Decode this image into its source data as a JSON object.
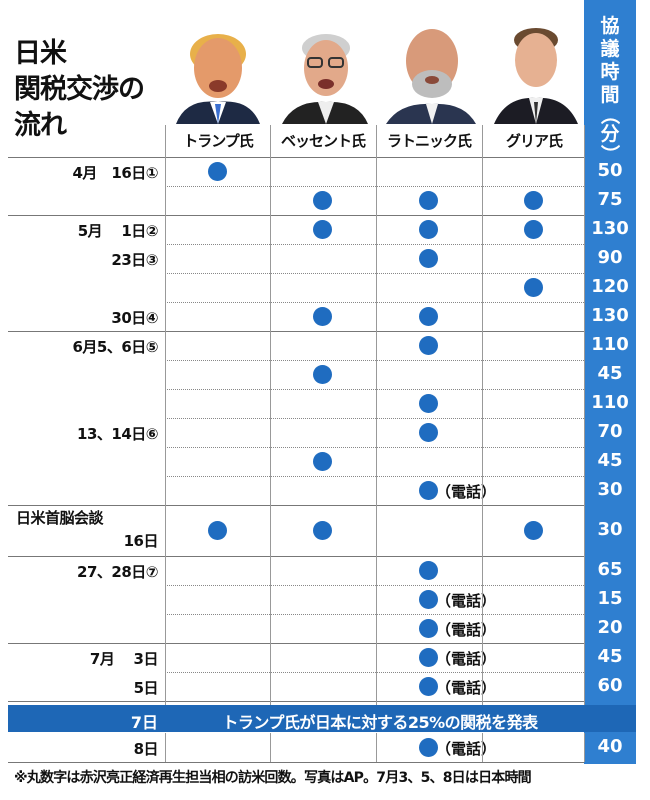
{
  "title_lines": [
    "日米",
    "関税交渉の",
    "流れ"
  ],
  "people": [
    "トランプ氏",
    "ベッセント氏",
    "ラトニック氏",
    "グリア氏"
  ],
  "minutes_header_chars": [
    "協",
    "議",
    "時",
    "間",
    "（",
    "分",
    "）"
  ],
  "phone_label": "（電話）",
  "rows": [
    {
      "date": "4月　16日①",
      "marks": [
        1,
        0,
        0,
        0
      ],
      "minutes": "50"
    },
    {
      "date": "",
      "marks": [
        0,
        1,
        1,
        1
      ],
      "minutes": "75"
    },
    {
      "date": "5月　 1日②",
      "marks": [
        0,
        1,
        1,
        1
      ],
      "minutes": "130"
    },
    {
      "date": "23日③",
      "marks": [
        0,
        0,
        1,
        0
      ],
      "minutes": "90"
    },
    {
      "date": "",
      "marks": [
        0,
        0,
        0,
        1
      ],
      "minutes": "120"
    },
    {
      "date": "30日④",
      "marks": [
        0,
        1,
        1,
        0
      ],
      "minutes": "130"
    },
    {
      "date": "6月5、6日⑤",
      "marks": [
        0,
        0,
        1,
        0
      ],
      "minutes": "110"
    },
    {
      "date": "",
      "marks": [
        0,
        1,
        0,
        0
      ],
      "minutes": "45"
    },
    {
      "date": "",
      "marks": [
        0,
        0,
        1,
        0
      ],
      "minutes": "110"
    },
    {
      "date": "13、14日⑥",
      "marks": [
        0,
        0,
        1,
        0
      ],
      "minutes": "70"
    },
    {
      "date": "",
      "marks": [
        0,
        1,
        0,
        0
      ],
      "minutes": "45"
    },
    {
      "date": "",
      "marks": [
        0,
        0,
        2,
        0
      ],
      "minutes": "30"
    },
    {
      "date": "日米首脳会談",
      "date2": "16日",
      "marks": [
        1,
        1,
        0,
        1
      ],
      "minutes": "30"
    },
    {
      "date": "27、28日⑦",
      "marks": [
        0,
        0,
        1,
        0
      ],
      "minutes": "65"
    },
    {
      "date": "",
      "marks": [
        0,
        0,
        2,
        0
      ],
      "minutes": "15"
    },
    {
      "date": "",
      "marks": [
        0,
        0,
        2,
        0
      ],
      "minutes": "20"
    },
    {
      "date": "7月　 3日",
      "marks": [
        0,
        0,
        2,
        0
      ],
      "minutes": "45"
    },
    {
      "date": "5日",
      "marks": [
        0,
        0,
        2,
        0
      ],
      "minutes": "60"
    },
    {
      "date": "8日",
      "marks": [
        0,
        0,
        2,
        0
      ],
      "minutes": "40"
    }
  ],
  "banner": {
    "date": "7日",
    "text": "トランプ氏が日本に対する25%の関税を発表"
  },
  "footnote": "※丸数字は赤沢亮正経済再生担当相の訪米回数。写真はAP。7月3、5、8日は日本時間",
  "colors": {
    "accent": "#2f7fd0",
    "dot": "#1f6cc0",
    "banner": "#1e67b6"
  }
}
